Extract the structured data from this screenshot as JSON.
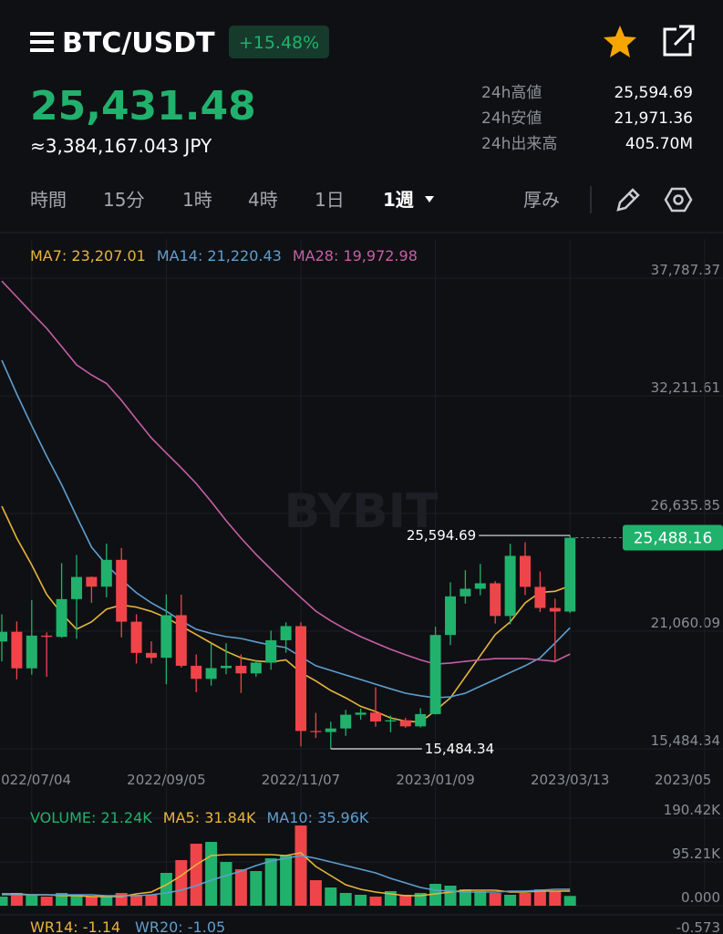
{
  "header": {
    "symbol": "BTC/USDT",
    "change": "+15.48%",
    "price": "25,431.48",
    "fiat": "≈3,384,167.043 JPY",
    "stats": [
      {
        "label": "24h高値",
        "value": "25,594.69"
      },
      {
        "label": "24h安値",
        "value": "21,971.36"
      },
      {
        "label": "24h出来高",
        "value": "405.70M"
      }
    ]
  },
  "tabs": [
    "時間",
    "15分",
    "1時",
    "4時",
    "1日",
    "1週"
  ],
  "depth": "厚み",
  "watermark": "BYBIT",
  "chart_data": [
    {
      "type": "candlestick",
      "categories": [
        null,
        null,
        "2022/07/04",
        null,
        null,
        null,
        null,
        null,
        null,
        null,
        null,
        "2022/09/05",
        null,
        null,
        null,
        null,
        null,
        null,
        null,
        null,
        "2022/11/07",
        null,
        null,
        null,
        null,
        null,
        null,
        null,
        null,
        "2023/01/09",
        null,
        null,
        null,
        null,
        null,
        null,
        null,
        null,
        "2023/03/13",
        null,
        null,
        null,
        null,
        null,
        null,
        null,
        null,
        "2023/05"
      ],
      "open": [
        20570,
        21030,
        19300,
        20850,
        20790,
        22580,
        23630,
        23170,
        24440,
        21510,
        20030,
        19800,
        21820,
        19420,
        18800,
        19310,
        19420,
        19060,
        19570,
        20630,
        21300,
        16330,
        16280,
        16450,
        17100,
        17200,
        16780,
        16840,
        16550,
        17130,
        20880,
        22710,
        23070,
        23330,
        21780,
        24630,
        23160,
        22160,
        21990,
        null,
        null,
        null,
        null,
        null,
        null,
        null,
        null,
        null
      ],
      "high": [
        21860,
        21520,
        22530,
        21000,
        24280,
        24670,
        23650,
        25210,
        25000,
        21860,
        20580,
        22800,
        22790,
        19960,
        20480,
        20490,
        19960,
        19700,
        21090,
        21480,
        21480,
        17190,
        16770,
        17330,
        17390,
        18400,
        17060,
        16950,
        17410,
        21270,
        23380,
        23950,
        24250,
        23430,
        25200,
        25270,
        23890,
        22600,
        25594.69,
        null,
        null,
        null,
        null,
        null,
        null,
        null,
        null,
        null
      ],
      "low": [
        19630,
        18780,
        19000,
        18900,
        20750,
        20700,
        22400,
        22660,
        20770,
        19530,
        19530,
        18540,
        19330,
        18170,
        18480,
        19020,
        18130,
        18900,
        19230,
        20040,
        15600,
        16000,
        15484.34,
        16100,
        16870,
        16530,
        16270,
        16480,
        16500,
        17110,
        20400,
        22370,
        22760,
        21420,
        21380,
        22770,
        21970,
        19570,
        21920,
        null,
        null,
        null,
        null,
        null,
        null,
        null,
        null,
        null
      ],
      "close": [
        21030,
        19300,
        20850,
        20790,
        22580,
        23630,
        23170,
        24440,
        21510,
        20030,
        19800,
        21820,
        19420,
        18800,
        19310,
        19420,
        19060,
        19570,
        20630,
        21300,
        16330,
        16280,
        16450,
        17100,
        17200,
        16780,
        16840,
        16550,
        17130,
        20880,
        22710,
        23070,
        23330,
        21780,
        24630,
        23160,
        22160,
        21990,
        25488.16,
        null,
        null,
        null,
        null,
        null,
        null,
        null,
        null,
        null
      ],
      "up_color": "#20b26c",
      "down_color": "#ef454a",
      "series": [
        {
          "name": "MA7: 23,207.01",
          "color": "#e8b53a",
          "values": [
            26980,
            25470,
            24200,
            22800,
            21900,
            21150,
            21500,
            22100,
            22300,
            22200,
            22000,
            21700,
            21300,
            20900,
            20500,
            20100,
            19800,
            19650,
            19600,
            19700,
            19100,
            18700,
            18250,
            17900,
            17500,
            17250,
            16950,
            16800,
            16750,
            17300,
            17900,
            18900,
            19900,
            20900,
            21500,
            22400,
            22900,
            22950,
            23207.01,
            null,
            null,
            null,
            null,
            null,
            null,
            null,
            null,
            null
          ]
        },
        {
          "name": "MA14: 21,220.43",
          "color": "#5e9fd0",
          "values": [
            33900,
            32300,
            30800,
            29360,
            28000,
            26500,
            25040,
            24200,
            23500,
            22880,
            22400,
            22010,
            21550,
            21150,
            20950,
            20800,
            20716,
            20550,
            20400,
            20280,
            19850,
            19420,
            19200,
            18980,
            18770,
            18550,
            18330,
            18120,
            18000,
            17900,
            17950,
            18120,
            18450,
            18770,
            19100,
            19420,
            19800,
            20500,
            21220.43,
            null,
            null,
            null,
            null,
            null,
            null,
            null,
            null,
            null
          ]
        },
        {
          "name": "MA28: 19,972.98",
          "color": "#c65fa6",
          "values": [
            37650,
            36900,
            36150,
            35410,
            34550,
            33680,
            33200,
            32800,
            32000,
            31100,
            30220,
            29500,
            28800,
            28060,
            27200,
            26300,
            25470,
            24700,
            24000,
            23310,
            22650,
            22010,
            21550,
            21150,
            20800,
            20500,
            20200,
            19940,
            19700,
            19500,
            19550,
            19630,
            19700,
            19760,
            19760,
            19760,
            19700,
            19630,
            19972.98,
            null,
            null,
            null,
            null,
            null,
            null,
            null,
            null,
            null
          ]
        }
      ],
      "ylim": [
        14663,
        39646
      ],
      "yticks": [
        {
          "value": 15484.34,
          "label": "15,484.34"
        },
        {
          "value": 21060.09,
          "label": "21,060.09"
        },
        {
          "value": 26635.85,
          "label": "26,635.85"
        },
        {
          "value": 32211.61,
          "label": "32,211.61"
        },
        {
          "value": 37787.37,
          "label": "37,787.37"
        }
      ],
      "grid": true,
      "high_label": "25,594.69",
      "low_label": "15,484.34",
      "last_label": "25,488.16"
    },
    {
      "type": "bar",
      "label": "VOLUME: 21.24K",
      "label_color": "#20b26c",
      "values": [
        19830,
        27760,
        23800,
        19830,
        27760,
        23800,
        19830,
        19830,
        27760,
        23800,
        23800,
        71390,
        99150,
        134840,
        138810,
        95180,
        79320,
        75350,
        103120,
        109070,
        174500,
        55520,
        39660,
        27760,
        23800,
        19830,
        31730,
        23800,
        27760,
        47590,
        43630,
        35690,
        31730,
        27760,
        23800,
        27760,
        35690,
        31730,
        21240
      ],
      "series": [
        {
          "name": "MA5: 31.84K",
          "color": "#e8b53a",
          "values": [
            25780,
            25780,
            23800,
            23800,
            21810,
            21810,
            19830,
            19830,
            19830,
            25780,
            29750,
            45610,
            65440,
            89240,
            109070,
            111050,
            111050,
            111050,
            111050,
            109070,
            115010,
            85270,
            65440,
            45610,
            35690,
            29750,
            25780,
            21810,
            21810,
            25780,
            29750,
            33710,
            33710,
            33710,
            29750,
            29750,
            31730,
            31730,
            31840
          ]
        },
        {
          "name": "MA10: 35.96K",
          "color": "#5e9fd0",
          "values": [
            23800,
            23800,
            23800,
            23800,
            23800,
            23800,
            23800,
            21810,
            21810,
            21810,
            23800,
            27760,
            33710,
            43630,
            55520,
            65440,
            75350,
            87250,
            97170,
            103120,
            109070,
            103120,
            95180,
            87250,
            79320,
            71390,
            59490,
            49580,
            39660,
            33710,
            31730,
            29750,
            29750,
            29750,
            31730,
            31730,
            33710,
            35690,
            35960
          ]
        }
      ],
      "ylim": [
        0,
        214220
      ],
      "yticks": [
        {
          "value": 0,
          "label": "0.000"
        },
        {
          "value": 95210,
          "label": "95.21K"
        },
        {
          "value": 190420,
          "label": "190.42K"
        }
      ]
    }
  ],
  "indicator": {
    "items": [
      {
        "text": "WR14: -1.14",
        "color": "#e8b53a"
      },
      {
        "text": "WR20: -1.05",
        "color": "#5e9fd0"
      }
    ],
    "tick": "-0.573"
  }
}
